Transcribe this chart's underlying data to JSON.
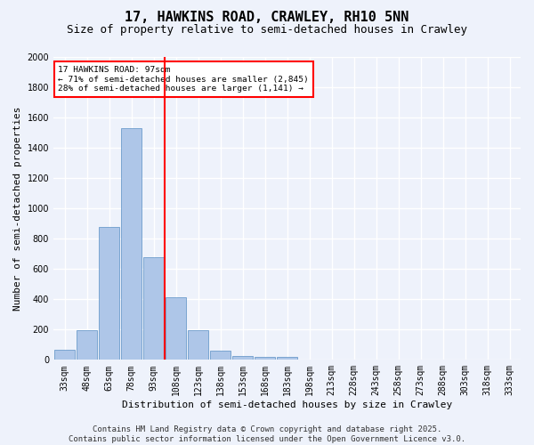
{
  "title": "17, HAWKINS ROAD, CRAWLEY, RH10 5NN",
  "subtitle": "Size of property relative to semi-detached houses in Crawley",
  "xlabel": "Distribution of semi-detached houses by size in Crawley",
  "ylabel": "Number of semi-detached properties",
  "bins": [
    "33sqm",
    "48sqm",
    "63sqm",
    "78sqm",
    "93sqm",
    "108sqm",
    "123sqm",
    "138sqm",
    "153sqm",
    "168sqm",
    "183sqm",
    "198sqm",
    "213sqm",
    "228sqm",
    "243sqm",
    "258sqm",
    "273sqm",
    "288sqm",
    "303sqm",
    "318sqm",
    "333sqm"
  ],
  "values": [
    65,
    195,
    880,
    1530,
    680,
    415,
    195,
    60,
    25,
    20,
    18,
    0,
    0,
    0,
    0,
    0,
    0,
    0,
    0,
    0,
    0
  ],
  "bar_color": "#aec6e8",
  "bar_edge_color": "#5a8fc4",
  "vline_x": 4.5,
  "vline_color": "red",
  "annotation_title": "17 HAWKINS ROAD: 97sqm",
  "annotation_line1": "← 71% of semi-detached houses are smaller (2,845)",
  "annotation_line2": "28% of semi-detached houses are larger (1,141) →",
  "annotation_box_color": "white",
  "annotation_box_edge": "red",
  "ylim": [
    0,
    2000
  ],
  "yticks": [
    0,
    200,
    400,
    600,
    800,
    1000,
    1200,
    1400,
    1600,
    1800,
    2000
  ],
  "footer_line1": "Contains HM Land Registry data © Crown copyright and database right 2025.",
  "footer_line2": "Contains public sector information licensed under the Open Government Licence v3.0.",
  "bg_color": "#eef2fb",
  "grid_color": "#ffffff",
  "title_fontsize": 11,
  "subtitle_fontsize": 9,
  "axis_fontsize": 8,
  "tick_fontsize": 7,
  "footer_fontsize": 6.5
}
